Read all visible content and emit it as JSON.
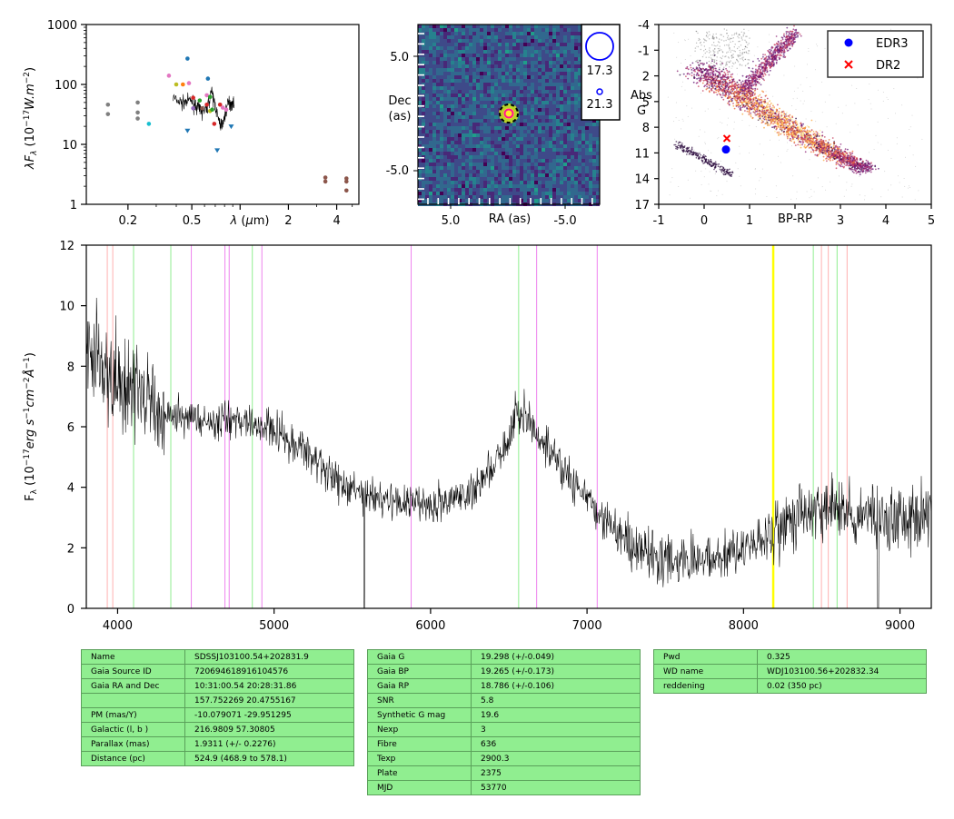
{
  "sed": {
    "ylabel": "λF_λ (10^-17 W.m^-2)",
    "xlabel": "λ (μm)",
    "ytick_labels": [
      "1000",
      "100",
      "10",
      "1"
    ],
    "xtick_labels": [
      "0.2",
      "0.5",
      "1",
      "2",
      "4"
    ],
    "points": [
      {
        "x": 0.15,
        "y": 46,
        "color": "#7f7f7f"
      },
      {
        "x": 0.15,
        "y": 32,
        "color": "#7f7f7f"
      },
      {
        "x": 0.23,
        "y": 50,
        "color": "#7f7f7f"
      },
      {
        "x": 0.23,
        "y": 34,
        "color": "#7f7f7f"
      },
      {
        "x": 0.23,
        "y": 27,
        "color": "#7f7f7f"
      },
      {
        "x": 0.27,
        "y": 22,
        "color": "#17becf"
      },
      {
        "x": 0.36,
        "y": 140,
        "color": "#e377c2"
      },
      {
        "x": 0.4,
        "y": 100,
        "color": "#bcbd22"
      },
      {
        "x": 0.44,
        "y": 100,
        "color": "#ff7f0e"
      },
      {
        "x": 0.47,
        "y": 270,
        "color": "#1f77b4"
      },
      {
        "x": 0.48,
        "y": 105,
        "color": "#e377c2"
      },
      {
        "x": 0.51,
        "y": 60,
        "color": "#d62728"
      },
      {
        "x": 0.51,
        "y": 40,
        "color": "#9467bd"
      },
      {
        "x": 0.56,
        "y": 54,
        "color": "#2ca02c"
      },
      {
        "x": 0.58,
        "y": 40,
        "color": "#8c564b"
      },
      {
        "x": 0.62,
        "y": 46,
        "color": "#d62728"
      },
      {
        "x": 0.62,
        "y": 66,
        "color": "#e377c2"
      },
      {
        "x": 0.63,
        "y": 125,
        "color": "#1f77b4"
      },
      {
        "x": 0.65,
        "y": 62,
        "color": "#2ca02c"
      },
      {
        "x": 0.65,
        "y": 36,
        "color": "#bcbd22"
      },
      {
        "x": 0.67,
        "y": 38,
        "color": "#2ca02c"
      },
      {
        "x": 0.69,
        "y": 22,
        "color": "#d62728"
      },
      {
        "x": 0.75,
        "y": 46,
        "color": "#d62728"
      },
      {
        "x": 0.78,
        "y": 41,
        "color": "#e377c2"
      },
      {
        "x": 0.82,
        "y": 38,
        "color": "#e377c2"
      },
      {
        "x": 3.4,
        "y": 2.8,
        "color": "#8c564b"
      },
      {
        "x": 3.4,
        "y": 2.4,
        "color": "#8c564b"
      },
      {
        "x": 4.6,
        "y": 2.7,
        "color": "#8c564b"
      },
      {
        "x": 4.6,
        "y": 2.4,
        "color": "#8c564b"
      },
      {
        "x": 4.6,
        "y": 1.7,
        "color": "#8c564b"
      }
    ],
    "upper_limits": [
      {
        "x": 0.47,
        "y": 17,
        "color": "#1f77b4"
      },
      {
        "x": 0.72,
        "y": 8,
        "color": "#1f77b4"
      },
      {
        "x": 0.88,
        "y": 20,
        "color": "#1f77b4"
      }
    ],
    "colors": {
      "spectrum": "#000000"
    }
  },
  "image_panel": {
    "ylabel": "Dec\n(as)",
    "xlabel": "RA (as)",
    "ytick_labels": [
      "5.0",
      "-5.0"
    ],
    "xtick_labels": [
      "5.0",
      "-5.0"
    ],
    "legend_mags": [
      "17.3",
      "21.3"
    ],
    "colors": {
      "bg": "#3b528b",
      "legend_circle": "#0000ff",
      "marker": "#ff1493"
    }
  },
  "hr_panel": {
    "ylabel": "Abs\nG",
    "xlabel": "BP-RP",
    "ytick_labels": [
      "-4",
      "-1",
      "2",
      "5",
      "8",
      "11",
      "14",
      "17"
    ],
    "xtick_labels": [
      "-1",
      "0",
      "1",
      "2",
      "3",
      "4",
      "5"
    ],
    "xlim": [
      -1,
      5
    ],
    "ylim": [
      17,
      -4
    ],
    "legend": [
      "EDR3",
      "DR2"
    ],
    "target": {
      "edr3": {
        "x": 0.48,
        "y": 10.6
      },
      "dr2": {
        "x": 0.5,
        "y": 9.3
      }
    },
    "colors": {
      "edr3": "#0000ff",
      "dr2": "#ff0000"
    }
  },
  "chart_data": {
    "type": "line",
    "ylabel": "F_λ (10^-17 erg s^-1 cm^-2 Å^-1)",
    "xlabel": "",
    "xlim": [
      3800,
      9200
    ],
    "ylim": [
      0,
      12
    ],
    "xtick_labels": [
      "4000",
      "5000",
      "6000",
      "7000",
      "8000",
      "9000"
    ],
    "ytick_labels": [
      "0",
      "2",
      "4",
      "6",
      "8",
      "10",
      "12"
    ],
    "x": [
      3800,
      4000,
      4300,
      4600,
      4800,
      5000,
      5200,
      5400,
      5600,
      5800,
      6000,
      6200,
      6400,
      6500,
      6560,
      6700,
      6900,
      7100,
      7300,
      7500,
      7700,
      7900,
      8100,
      8300,
      8500,
      8700,
      9000,
      9200
    ],
    "y": [
      9.0,
      7.5,
      6.5,
      6.2,
      6.3,
      5.9,
      5.2,
      4.3,
      3.7,
      3.5,
      3.4,
      3.6,
      4.6,
      5.6,
      6.6,
      5.6,
      4.2,
      3.0,
      2.0,
      1.6,
      1.6,
      1.7,
      2.3,
      3.0,
      3.3,
      3.2,
      3.0,
      3.1
    ],
    "lines": [
      {
        "x": 3934,
        "color": "#ffb0b0"
      },
      {
        "x": 3969,
        "color": "#ffb0b0"
      },
      {
        "x": 4102,
        "color": "#90ee90"
      },
      {
        "x": 4340,
        "color": "#90ee90"
      },
      {
        "x": 4471,
        "color": "#ee82ee"
      },
      {
        "x": 4686,
        "color": "#ee82ee"
      },
      {
        "x": 4713,
        "color": "#ee82ee"
      },
      {
        "x": 4861,
        "color": "#90ee90"
      },
      {
        "x": 4922,
        "color": "#ee82ee"
      },
      {
        "x": 5876,
        "color": "#ee82ee"
      },
      {
        "x": 6563,
        "color": "#90ee90"
      },
      {
        "x": 6678,
        "color": "#ee82ee"
      },
      {
        "x": 7065,
        "color": "#ee82ee"
      },
      {
        "x": 8190,
        "color": "#ffff00"
      },
      {
        "x": 8446,
        "color": "#90ee90"
      },
      {
        "x": 8498,
        "color": "#ffb0b0"
      },
      {
        "x": 8542,
        "color": "#ffb0b0"
      },
      {
        "x": 8598,
        "color": "#90ee90"
      },
      {
        "x": 8662,
        "color": "#ffb0b0"
      }
    ]
  },
  "tables": {
    "left": [
      [
        "Name",
        "SDSSJ103100.54+202831.9"
      ],
      [
        "Gaia Source ID",
        "720694618916104576"
      ],
      [
        "Gaia RA and Dec",
        "10:31:00.54    20:28:31.86"
      ],
      [
        "",
        "157.752269    20.4755167"
      ],
      [
        "PM (mas/Y)",
        "-10.079071    -29.951295"
      ],
      [
        "Galactic (l, b )",
        "216.9809    57.30805"
      ],
      [
        "Parallax (mas)",
        "1.9311 (+/- 0.2276)"
      ],
      [
        "Distance (pc)",
        "524.9 (468.9 to 578.1)"
      ]
    ],
    "middle": [
      [
        "Gaia G",
        "19.298 (+/-0.049)"
      ],
      [
        "Gaia BP",
        "19.265 (+/-0.173)"
      ],
      [
        "Gaia RP",
        "18.786 (+/-0.106)"
      ],
      [
        "SNR",
        "5.8"
      ],
      [
        "Synthetic G mag",
        "19.6"
      ],
      [
        "Nexp",
        "3"
      ],
      [
        "Fibre",
        "636"
      ],
      [
        "Texp",
        "2900.3"
      ],
      [
        "Plate",
        "2375"
      ],
      [
        "MJD",
        "53770"
      ]
    ],
    "right": [
      [
        "Pwd",
        "0.325"
      ],
      [
        "WD name",
        "WDJ103100.56+202832.34"
      ],
      [
        "reddening",
        "0.02 (350 pc)"
      ]
    ]
  }
}
